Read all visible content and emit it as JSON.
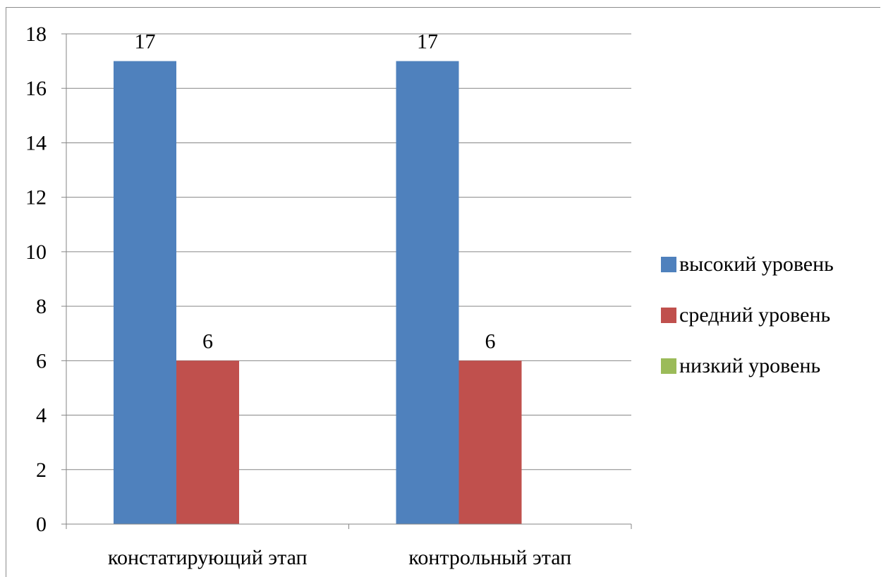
{
  "chart_data": {
    "type": "bar",
    "categories": [
      "констатирующий этап",
      "контрольный этап"
    ],
    "series": [
      {
        "name": "высокий уровень",
        "values": [
          17,
          17
        ],
        "color": "#4f81bd"
      },
      {
        "name": "средний уровень",
        "values": [
          6,
          6
        ],
        "color": "#c0504d"
      },
      {
        "name": "низкий уровень",
        "values": [
          0,
          0
        ],
        "color": "#9bbb59"
      }
    ],
    "data_labels": [
      {
        "series": 0,
        "category": 0,
        "text": "17"
      },
      {
        "series": 1,
        "category": 0,
        "text": "6"
      },
      {
        "series": 0,
        "category": 1,
        "text": "17"
      },
      {
        "series": 1,
        "category": 1,
        "text": "6"
      }
    ],
    "yticks": [
      "0",
      "2",
      "4",
      "6",
      "8",
      "10",
      "12",
      "14",
      "16",
      "18"
    ],
    "ylim": [
      0,
      18
    ],
    "grid": true,
    "legend_position": "right"
  }
}
